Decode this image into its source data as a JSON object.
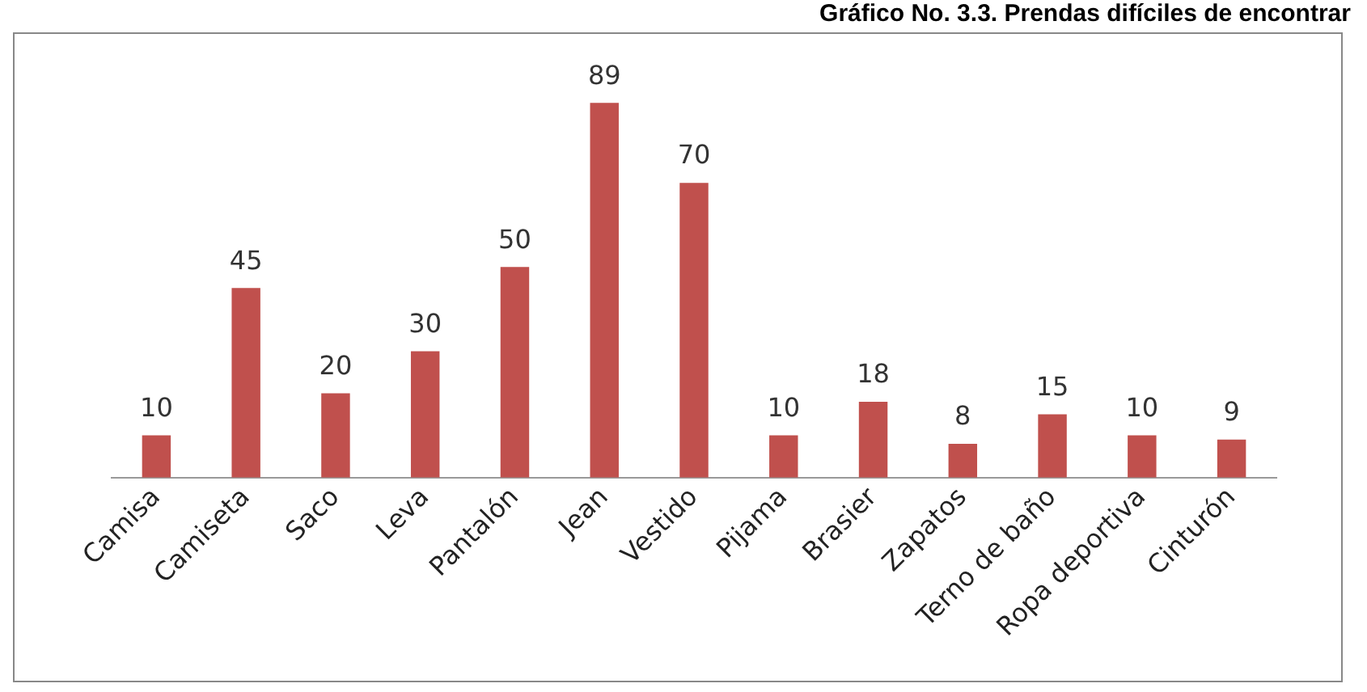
{
  "chart_data": {
    "type": "bar",
    "title": "Gráfico No. 3.3. Prendas difíciles de encontrar",
    "categories": [
      "Camisa",
      "Camiseta",
      "Saco",
      "Leva",
      "Pantalón",
      "Jean",
      "Vestido",
      "Pijama",
      "Brasier",
      "Zapatos",
      "Terno de baño",
      "Ropa deportiva",
      "Cinturón"
    ],
    "values": [
      10,
      45,
      20,
      30,
      50,
      89,
      70,
      10,
      18,
      8,
      15,
      10,
      9
    ],
    "color": "#c0504d",
    "data_labels": true,
    "grid": false,
    "legend": false
  }
}
